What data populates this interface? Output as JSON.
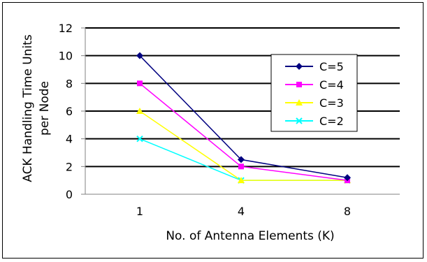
{
  "chart_data": {
    "type": "line",
    "title": "",
    "xlabel": "No. of Antenna Elements (K)",
    "ylabel": [
      "ACK Handling Time Units",
      "per Node"
    ],
    "categories": [
      "1",
      "4",
      "8"
    ],
    "ylim": [
      0,
      12
    ],
    "yticks": [
      0,
      2,
      4,
      6,
      8,
      10,
      12
    ],
    "grid": "horizontal",
    "legend_position": "top-right",
    "series": [
      {
        "name": "C=5",
        "values": [
          10,
          2.5,
          1.2
        ],
        "color": "#000080",
        "marker": "diamond"
      },
      {
        "name": "C=4",
        "values": [
          8,
          2,
          1
        ],
        "color": "#ff00ff",
        "marker": "square"
      },
      {
        "name": "C=3",
        "values": [
          6,
          1,
          1
        ],
        "color": "#ffff00",
        "marker": "triangle"
      },
      {
        "name": "C=2",
        "values": [
          4,
          1,
          1
        ],
        "color": "#00ffff",
        "marker": "x"
      }
    ]
  }
}
